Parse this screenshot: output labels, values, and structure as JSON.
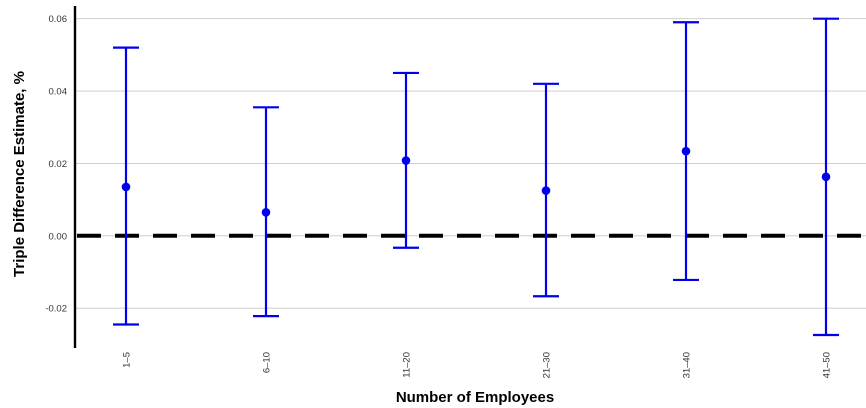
{
  "chart_data": {
    "type": "errorbar",
    "title": "",
    "xlabel": "Number of Employees",
    "ylabel": "Triple Difference Estimate, %",
    "categories": [
      "1–5",
      "6–10",
      "11–20",
      "21–30",
      "31–40",
      "41–50"
    ],
    "estimates": [
      0.0135,
      0.0065,
      0.0208,
      0.0125,
      0.0234,
      0.0163
    ],
    "ci_lower": [
      -0.0245,
      -0.0222,
      -0.0033,
      -0.0167,
      -0.0122,
      -0.0274
    ],
    "ci_upper": [
      0.052,
      0.0355,
      0.045,
      0.042,
      0.059,
      0.06
    ],
    "yticks": [
      -0.02,
      0.0,
      0.02,
      0.04,
      0.06
    ],
    "ytick_labels": [
      "-0.02",
      "0.00",
      "0.02",
      "0.04",
      "0.06"
    ],
    "ylim": [
      -0.031,
      0.0635
    ],
    "reference_line": 0.0,
    "grid": "horizontal",
    "colors": {
      "series": "#0000ee",
      "reference": "#000000",
      "grid": "#c8c8c8"
    }
  }
}
